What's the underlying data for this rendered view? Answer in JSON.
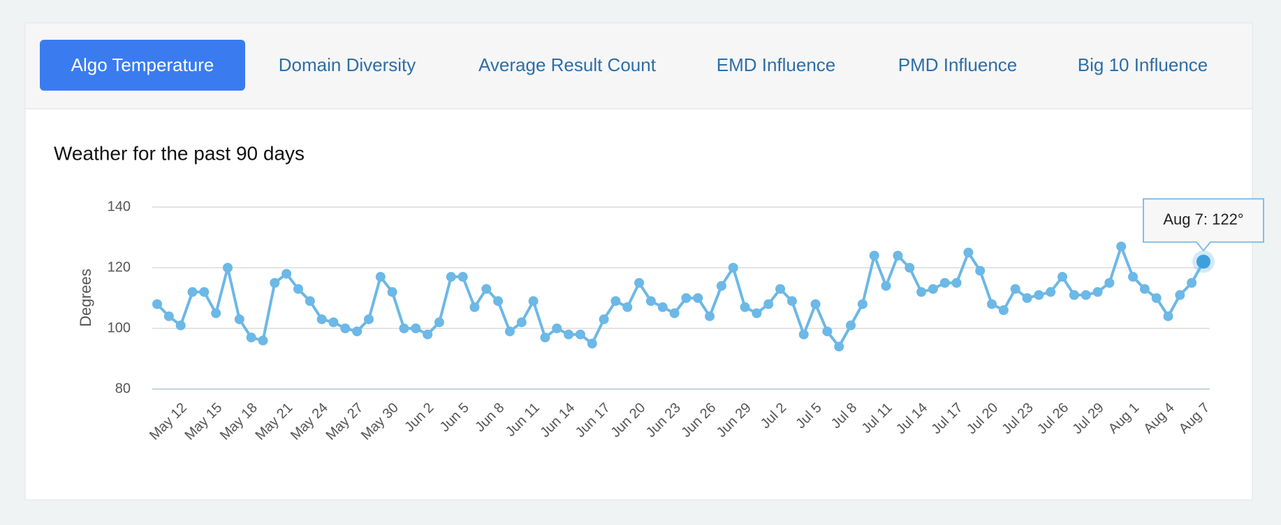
{
  "tabs": [
    "Algo Temperature",
    "Domain Diversity",
    "Average Result Count",
    "EMD Influence",
    "PMD Influence",
    "Big 10 Influence"
  ],
  "active_tab": 0,
  "chart_data": {
    "type": "line",
    "title": "Weather for the past 90 days",
    "y_label": "Degrees",
    "categories": [
      null,
      null,
      "May 12",
      null,
      null,
      "May 15",
      null,
      null,
      "May 18",
      null,
      null,
      "May 21",
      null,
      null,
      "May 24",
      null,
      null,
      "May 27",
      null,
      null,
      "May 30",
      null,
      null,
      "Jun 2",
      null,
      null,
      "Jun 5",
      null,
      null,
      "Jun 8",
      null,
      null,
      "Jun 11",
      null,
      null,
      "Jun 14",
      null,
      null,
      "Jun 17",
      null,
      null,
      "Jun 20",
      null,
      null,
      "Jun 23",
      null,
      null,
      "Jun 26",
      null,
      null,
      "Jun 29",
      null,
      null,
      "Jul 2",
      null,
      null,
      "Jul 5",
      null,
      null,
      "Jul 8",
      null,
      null,
      "Jul 11",
      null,
      null,
      "Jul 14",
      null,
      null,
      "Jul 17",
      null,
      null,
      "Jul 20",
      null,
      null,
      "Jul 23",
      null,
      null,
      "Jul 26",
      null,
      null,
      "Jul 29",
      null,
      null,
      "Aug 1",
      null,
      null,
      "Aug 4",
      null,
      null,
      "Aug 7"
    ],
    "series": [
      {
        "name": "Degrees",
        "color": "#6cb8e6",
        "values": [
          108,
          104,
          101,
          112,
          112,
          105,
          120,
          103,
          97,
          96,
          115,
          118,
          113,
          109,
          103,
          102,
          100,
          99,
          103,
          117,
          112,
          100,
          100,
          98,
          102,
          117,
          117,
          107,
          113,
          109,
          99,
          102,
          109,
          97,
          100,
          98,
          98,
          95,
          103,
          109,
          107,
          115,
          109,
          107,
          105,
          110,
          110,
          104,
          114,
          120,
          107,
          105,
          108,
          113,
          109,
          98,
          108,
          99,
          94,
          101,
          108,
          124,
          114,
          124,
          120,
          112,
          113,
          115,
          115,
          125,
          119,
          108,
          106,
          113,
          110,
          111,
          112,
          117,
          111,
          111,
          112,
          115,
          127,
          117,
          113,
          110,
          104,
          111,
          115,
          122
        ]
      }
    ],
    "ylim": [
      80,
      140
    ],
    "yticks": [
      80,
      100,
      120,
      140
    ],
    "grid": true,
    "tooltip": "Aug 7: 122°",
    "highlight": 89
  }
}
